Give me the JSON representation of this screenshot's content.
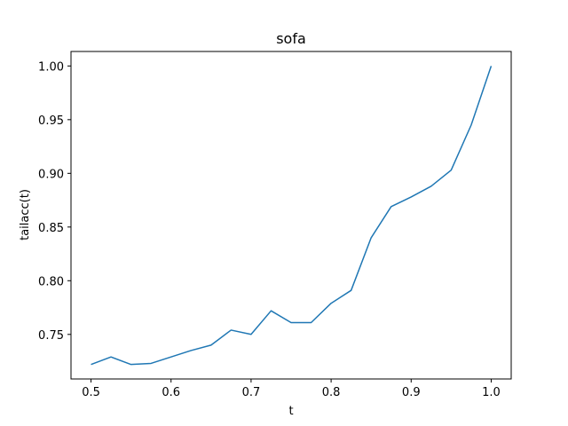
{
  "chart_data": {
    "type": "line",
    "title": "sofa",
    "xlabel": "t",
    "ylabel": "tailacc(t)",
    "xlim": [
      0.475,
      1.025
    ],
    "ylim": [
      0.7085,
      1.0135
    ],
    "xticks": [
      0.5,
      0.6,
      0.7,
      0.8,
      0.9,
      1.0
    ],
    "xtick_labels": [
      "0.5",
      "0.6",
      "0.7",
      "0.8",
      "0.9",
      "1.0"
    ],
    "yticks": [
      0.75,
      0.8,
      0.85,
      0.9,
      0.95,
      1.0
    ],
    "ytick_labels": [
      "0.75",
      "0.80",
      "0.85",
      "0.90",
      "0.95",
      "1.00"
    ],
    "grid": false,
    "series": [
      {
        "color": "#1f77b4",
        "x": [
          0.5,
          0.525,
          0.55,
          0.575,
          0.6,
          0.625,
          0.65,
          0.675,
          0.7,
          0.725,
          0.75,
          0.775,
          0.8,
          0.825,
          0.85,
          0.875,
          0.9,
          0.925,
          0.95,
          0.975,
          1.0
        ],
        "y": [
          0.722,
          0.729,
          0.722,
          0.723,
          0.729,
          0.735,
          0.74,
          0.754,
          0.75,
          0.772,
          0.761,
          0.761,
          0.779,
          0.791,
          0.84,
          0.869,
          0.878,
          0.888,
          0.903,
          0.945,
          1.0
        ]
      }
    ]
  }
}
